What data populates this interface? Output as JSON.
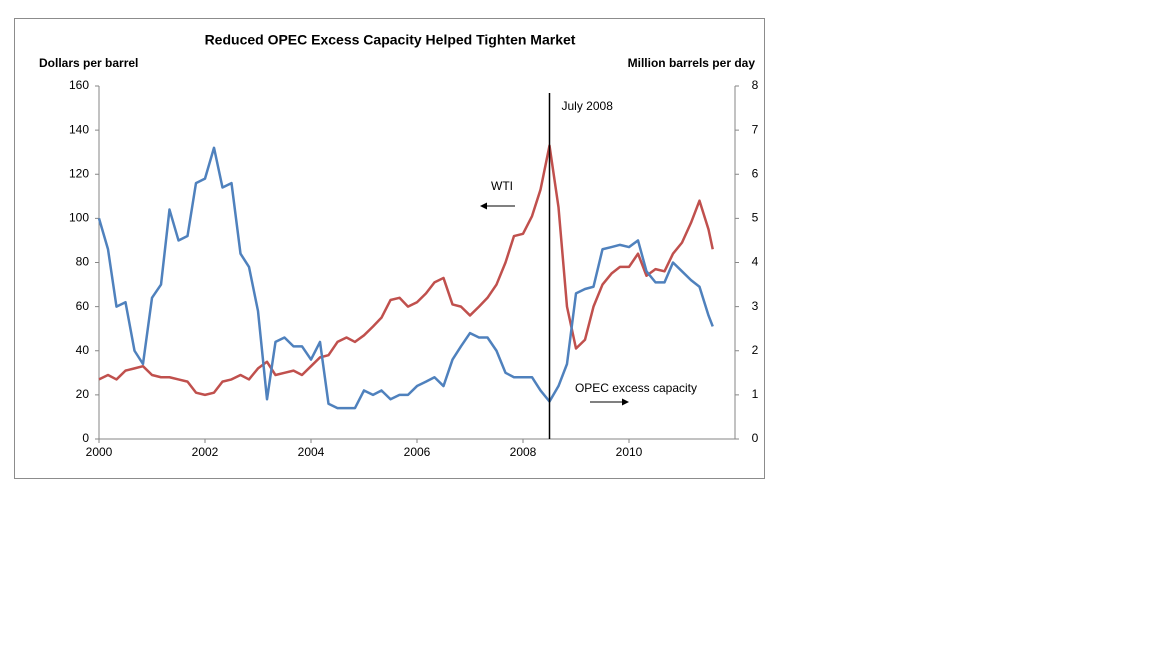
{
  "chart_data": {
    "type": "line",
    "title": "Reduced OPEC Excess Capacity Helped Tighten Market",
    "y_label": "Dollars per barrel",
    "y2_label": "Million barrels per day",
    "x": [
      2000.0,
      2000.17,
      2000.33,
      2000.5,
      2000.67,
      2000.83,
      2001.0,
      2001.17,
      2001.33,
      2001.5,
      2001.67,
      2001.83,
      2002.0,
      2002.17,
      2002.33,
      2002.5,
      2002.67,
      2002.83,
      2003.0,
      2003.17,
      2003.33,
      2003.5,
      2003.67,
      2003.83,
      2004.0,
      2004.17,
      2004.33,
      2004.5,
      2004.67,
      2004.83,
      2005.0,
      2005.17,
      2005.33,
      2005.5,
      2005.67,
      2005.83,
      2006.0,
      2006.17,
      2006.33,
      2006.5,
      2006.67,
      2006.83,
      2007.0,
      2007.17,
      2007.33,
      2007.5,
      2007.67,
      2007.83,
      2008.0,
      2008.17,
      2008.33,
      2008.5,
      2008.67,
      2008.83,
      2009.0,
      2009.17,
      2009.33,
      2009.5,
      2009.67,
      2009.83,
      2010.0,
      2010.17,
      2010.33,
      2010.5,
      2010.67,
      2010.83,
      2011.0,
      2011.17,
      2011.33,
      2011.5,
      2011.58
    ],
    "series": [
      {
        "name": "WTI",
        "color": "#c0504d",
        "axis": "y",
        "values": [
          27,
          29,
          27,
          31,
          32,
          33,
          29,
          28,
          28,
          27,
          26,
          21,
          20,
          21,
          26,
          27,
          29,
          27,
          32,
          35,
          29,
          30,
          31,
          29,
          33,
          37,
          38,
          44,
          46,
          44,
          47,
          51,
          55,
          63,
          64,
          60,
          62,
          66,
          71,
          73,
          61,
          60,
          56,
          60,
          64,
          70,
          80,
          92,
          93,
          101,
          113,
          133,
          105,
          60,
          41,
          45,
          60,
          70,
          75,
          78,
          78,
          84,
          74,
          77,
          76,
          84,
          89,
          98,
          108,
          95,
          86
        ]
      },
      {
        "name": "OPEC excess capacity",
        "color": "#4f81bd",
        "axis": "y2",
        "values": [
          5.0,
          4.3,
          3.0,
          3.1,
          2.0,
          1.7,
          3.2,
          3.5,
          5.2,
          4.5,
          4.6,
          5.8,
          5.9,
          6.6,
          5.7,
          5.8,
          4.2,
          3.9,
          2.9,
          0.9,
          2.2,
          2.3,
          2.1,
          2.1,
          1.8,
          2.2,
          0.8,
          0.7,
          0.7,
          0.7,
          1.1,
          1.0,
          1.1,
          0.9,
          1.0,
          1.0,
          1.2,
          1.3,
          1.4,
          1.2,
          1.8,
          2.1,
          2.4,
          2.3,
          2.3,
          2.0,
          1.5,
          1.4,
          1.4,
          1.4,
          1.1,
          0.85,
          1.2,
          1.7,
          3.3,
          3.4,
          3.45,
          4.3,
          4.35,
          4.4,
          4.35,
          4.5,
          3.8,
          3.55,
          3.55,
          4.0,
          3.8,
          3.6,
          3.45,
          2.8,
          2.55
        ]
      }
    ],
    "xlim": [
      2000,
      2012
    ],
    "xticks": [
      2000,
      2002,
      2004,
      2006,
      2008,
      2010
    ],
    "ylim": [
      0,
      160
    ],
    "yticks": [
      0,
      20,
      40,
      60,
      80,
      100,
      120,
      140,
      160
    ],
    "y2lim": [
      0,
      8
    ],
    "y2ticks": [
      0,
      1,
      2,
      3,
      4,
      5,
      6,
      7,
      8
    ],
    "vline": {
      "x": 2008.5,
      "label": "July 2008"
    },
    "grid": false
  }
}
